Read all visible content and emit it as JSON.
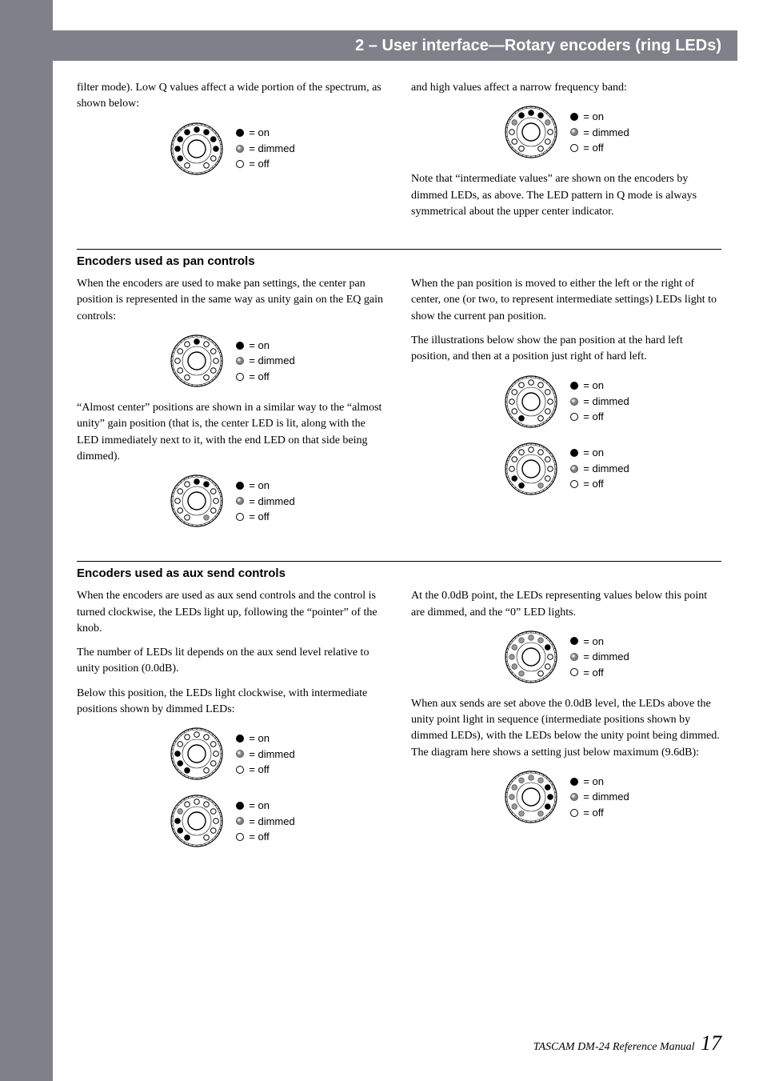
{
  "header": {
    "title": "2 – User interface—Rotary encoders (ring LEDs)"
  },
  "legend": {
    "on": "= on",
    "dimmed": "= dimmed",
    "off": "= off"
  },
  "intro": {
    "left": "filter mode). Low Q values affect a wide portion of the spectrum, as shown below:",
    "right_top": "and high values affect a narrow frequency band:",
    "right_note": "Note that “intermediate values” are shown on the encoders by dimmed LEDs, as above. The LED pattern in Q mode is always symmetrical about the upper center indicator."
  },
  "pan": {
    "heading": "Encoders used as pan controls",
    "left_p1": "When the encoders are used to make pan settings, the center pan position is represented in the same way as unity gain on the EQ gain controls:",
    "left_p2": "“Almost center” positions are shown in a similar way to the “almost unity” gain position (that is, the center LED is lit, along with the LED immediately next to it, with the end LED on that side being dimmed).",
    "right_p1": "When the pan position is moved to either the left or the right of center, one (or two, to represent intermediate settings) LEDs light to show the current pan position.",
    "right_p2": "The illustrations below show the pan position at the hard left position, and then at a position just right of hard left."
  },
  "aux": {
    "heading": "Encoders used as aux send controls",
    "left_p1": "When the encoders are used as aux send controls and the control is turned clockwise, the LEDs light up, following the “pointer” of the knob.",
    "left_p2": "The number of LEDs lit depends on the aux send level relative to unity position (0.0dB).",
    "left_p3": "Below this position, the LEDs light clockwise, with intermediate positions shown by dimmed LEDs:",
    "right_p1": "At the 0.0dB point, the LEDs representing values below this point are dimmed, and the “0” LED lights.",
    "right_p2": "When aux sends are set above the 0.0dB level, the LEDs above the unity point light in sequence (intermediate positions shown by dimmed LEDs), with the LEDs below the unity point being dimmed. The diagram here shows a setting just below maximum (9.6dB):"
  },
  "footer": {
    "label": "TASCAM DM-24 Reference Manual",
    "page": "17"
  },
  "encoders": {
    "lowQ": [
      "off",
      "on",
      "on",
      "on",
      "on",
      "on",
      "on",
      "on",
      "on",
      "off",
      "off"
    ],
    "highQ": [
      "off",
      "off",
      "off",
      "dim",
      "on",
      "on",
      "on",
      "dim",
      "off",
      "off",
      "off"
    ],
    "panCenter": [
      "off",
      "off",
      "off",
      "off",
      "off",
      "on",
      "off",
      "off",
      "off",
      "off",
      "off"
    ],
    "panAlmost": [
      "off",
      "off",
      "off",
      "off",
      "off",
      "on",
      "on",
      "off",
      "off",
      "off",
      "dim"
    ],
    "panHardLeft": [
      "on",
      "off",
      "off",
      "off",
      "off",
      "off",
      "off",
      "off",
      "off",
      "off",
      "off"
    ],
    "panJustRight": [
      "on",
      "on",
      "off",
      "off",
      "off",
      "off",
      "off",
      "off",
      "off",
      "off",
      "dim"
    ],
    "auxBelow1": [
      "on",
      "on",
      "on",
      "off",
      "off",
      "off",
      "off",
      "off",
      "off",
      "off",
      "off"
    ],
    "auxBelow2": [
      "on",
      "on",
      "on",
      "dim",
      "off",
      "off",
      "off",
      "off",
      "off",
      "off",
      "off"
    ],
    "aux0dB": [
      "dim",
      "dim",
      "dim",
      "dim",
      "dim",
      "dim",
      "dim",
      "on",
      "off",
      "off",
      "off"
    ],
    "auxAbove": [
      "dim",
      "dim",
      "dim",
      "dim",
      "dim",
      "dim",
      "dim",
      "on",
      "on",
      "on",
      "dim"
    ]
  }
}
